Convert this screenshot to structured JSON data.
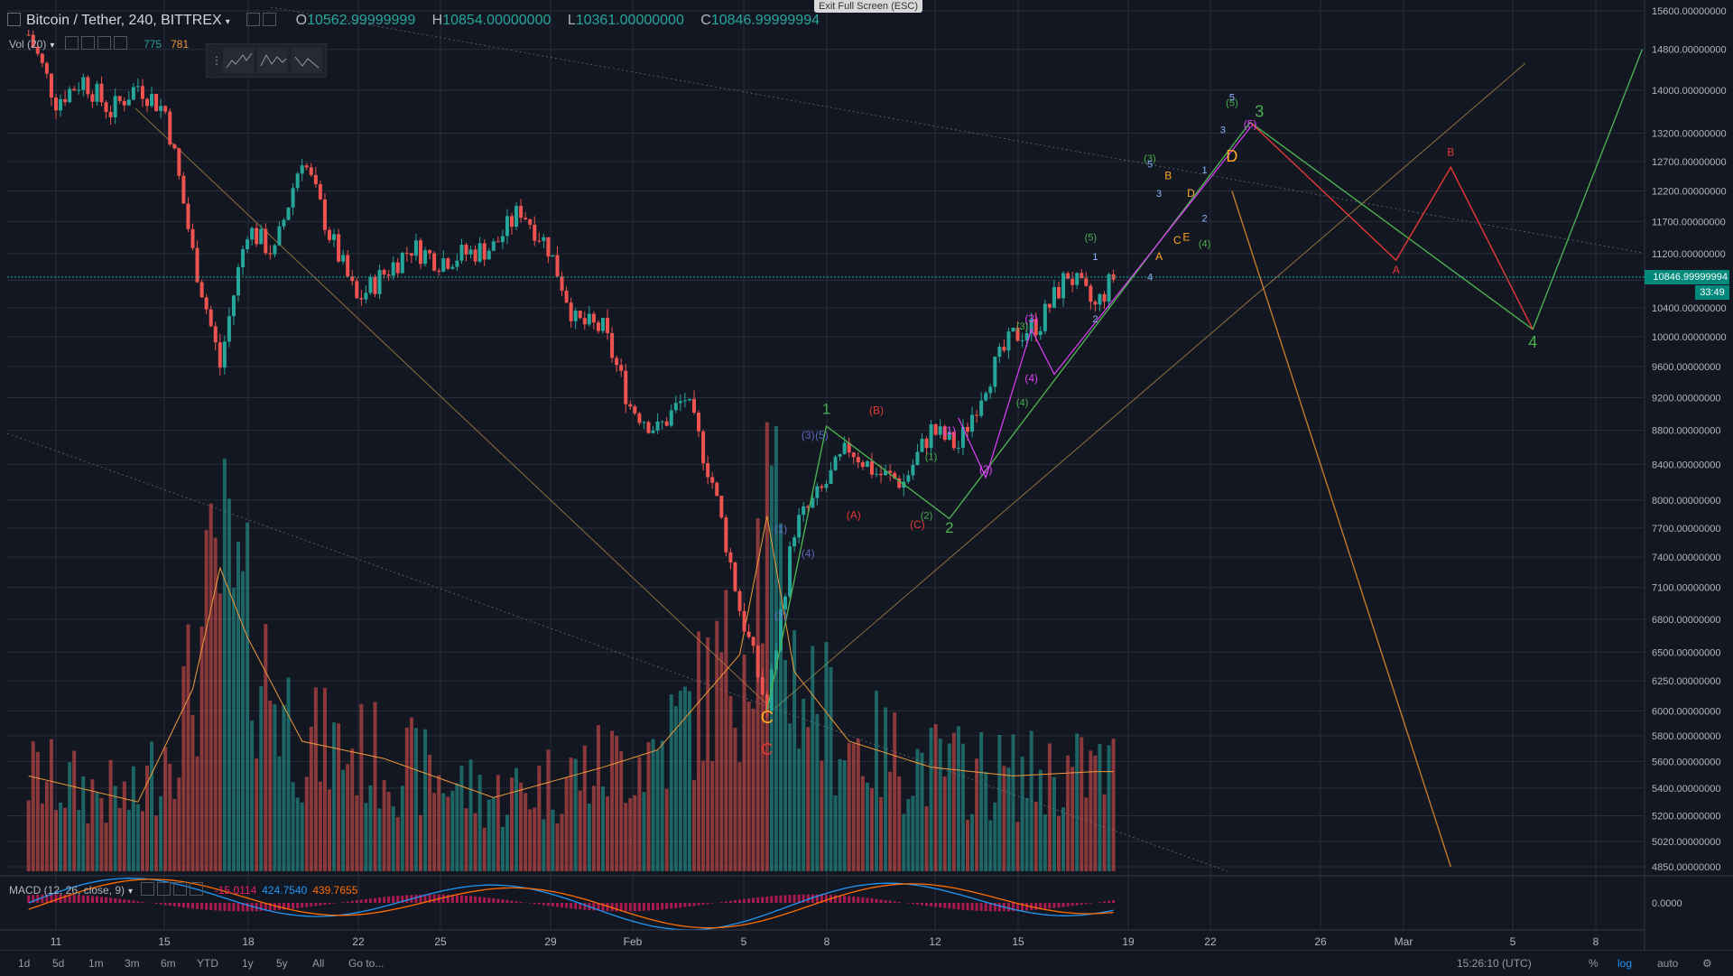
{
  "header": {
    "symbol": "Bitcoin / Tether, 240, BITTREX",
    "o_label": "O",
    "o_value": "10562.99999999",
    "h_label": "H",
    "h_value": "10854.00000000",
    "l_label": "L",
    "l_value": "10361.00000000",
    "c_label": "C",
    "c_value": "10846.99999994"
  },
  "volume": {
    "label": "Vol (20)",
    "value": "775",
    "ma_value": "781"
  },
  "toolbox": [
    "1 5",
    "A E",
    "A C"
  ],
  "macd": {
    "label": "MACD (12, 26, close, 9)",
    "hist": "-15.0114",
    "macd": "424.7540",
    "signal": "439.7655"
  },
  "exit_fullscreen": "Exit Full Screen (ESC)",
  "price_tag": "10846.99999994",
  "timer_tag": "33:49",
  "bottom": {
    "ranges": [
      "1d",
      "5d",
      "1m",
      "3m",
      "6m",
      "YTD",
      "1y",
      "5y",
      "All",
      "Go to..."
    ],
    "clock": "15:26:10 (UTC)",
    "options": [
      "%",
      "log",
      "auto"
    ],
    "active_option": "log"
  },
  "colors": {
    "bg": "#131722",
    "grid": "#2a2e39",
    "up": "#26a69a",
    "down": "#ef5350",
    "wave_green": "#4caf50",
    "wave_red": "#e53935",
    "wave_orange": "#ffa726",
    "wave_blue": "#5c6bc0",
    "wave_magenta": "#e040fb"
  },
  "chart_data": {
    "type": "candlestick",
    "scale": "log",
    "interval": "240",
    "price_axis": [
      "15600.00000000",
      "14800.00000000",
      "14000.00000000",
      "13200.00000000",
      "12700.00000000",
      "12200.00000000",
      "11700.00000000",
      "11200.00000000",
      "10800.00000000",
      "10400.00000000",
      "10000.00000000",
      "9600.00000000",
      "9200.00000000",
      "8800.00000000",
      "8400.00000000",
      "8000.00000000",
      "7700.00000000",
      "7400.00000000",
      "7100.00000000",
      "6800.00000000",
      "6500.00000000",
      "6250.00000000",
      "6000.00000000",
      "5800.00000000",
      "5600.00000000",
      "5400.00000000",
      "5200.00000000",
      "5020.00000000",
      "4850.00000000"
    ],
    "macd_axis": [
      "0.0000"
    ],
    "x_labels": [
      "11",
      "15",
      "18",
      "22",
      "25",
      "29",
      "Feb",
      "5",
      "8",
      "12",
      "15",
      "19",
      "22",
      "26",
      "Mar",
      "5",
      "8"
    ],
    "price_path": [
      [
        "2018-01-10",
        15100
      ],
      [
        "2018-01-11",
        13800
      ],
      [
        "2018-01-12",
        14200
      ],
      [
        "2018-01-13",
        13600
      ],
      [
        "2018-01-14",
        14100
      ],
      [
        "2018-01-15",
        13600
      ],
      [
        "2018-01-16",
        11200
      ],
      [
        "2018-01-17",
        9600
      ],
      [
        "2018-01-18",
        11600
      ],
      [
        "2018-01-19",
        11200
      ],
      [
        "2018-01-20",
        12800
      ],
      [
        "2018-01-21",
        11500
      ],
      [
        "2018-01-22",
        10500
      ],
      [
        "2018-01-23",
        10900
      ],
      [
        "2018-01-24",
        11300
      ],
      [
        "2018-01-25",
        11100
      ],
      [
        "2018-01-26",
        11200
      ],
      [
        "2018-01-27",
        11300
      ],
      [
        "2018-01-28",
        11900
      ],
      [
        "2018-01-29",
        11300
      ],
      [
        "2018-01-30",
        10200
      ],
      [
        "2018-01-31",
        10100
      ],
      [
        "2018-02-01",
        9100
      ],
      [
        "2018-02-02",
        8800
      ],
      [
        "2018-02-03",
        9200
      ],
      [
        "2018-02-04",
        8200
      ],
      [
        "2018-02-05",
        6900
      ],
      [
        "2018-02-06",
        6000
      ],
      [
        "2018-02-07",
        7700
      ],
      [
        "2018-02-08",
        8100
      ],
      [
        "2018-02-09",
        8600
      ],
      [
        "2018-02-10",
        8300
      ],
      [
        "2018-02-11",
        8200
      ],
      [
        "2018-02-12",
        8800
      ],
      [
        "2018-02-13",
        8600
      ],
      [
        "2018-02-14",
        9400
      ],
      [
        "2018-02-15",
        10000
      ],
      [
        "2018-02-16",
        10200
      ],
      [
        "2018-02-17",
        10900
      ],
      [
        "2018-02-18",
        10400
      ],
      [
        "2018-02-18T16:00",
        10847
      ]
    ],
    "volume_path": [
      [
        "2018-01-10",
        220
      ],
      [
        "2018-01-14",
        160
      ],
      [
        "2018-01-16",
        420
      ],
      [
        "2018-01-17",
        700
      ],
      [
        "2018-01-18",
        540
      ],
      [
        "2018-01-20",
        300
      ],
      [
        "2018-01-23",
        260
      ],
      [
        "2018-01-27",
        170
      ],
      [
        "2018-01-31",
        240
      ],
      [
        "2018-02-02",
        280
      ],
      [
        "2018-02-05",
        500
      ],
      [
        "2018-02-06",
        820
      ],
      [
        "2018-02-07",
        460
      ],
      [
        "2018-02-09",
        300
      ],
      [
        "2018-02-12",
        240
      ],
      [
        "2018-02-15",
        220
      ],
      [
        "2018-02-18",
        230
      ]
    ],
    "projection": [
      {
        "color": "#4caf50",
        "points": [
          [
            "2018-02-23T16:00",
            13400
          ],
          [
            "2018-03-06",
            10100
          ],
          [
            "2018-03-10",
            14800
          ]
        ]
      },
      {
        "color": "#e53935",
        "points": [
          [
            "2018-02-23T16:00",
            13400
          ],
          [
            "2018-03-01",
            11100
          ],
          [
            "2018-03-03",
            12600
          ],
          [
            "2018-03-06",
            10100
          ]
        ]
      },
      {
        "color": "#c47a2c",
        "points": [
          [
            "2018-02-23",
            12200
          ],
          [
            "2018-03-03",
            4850
          ]
        ]
      }
    ],
    "wave_labels": [
      {
        "text": "C",
        "t": "2018-02-06",
        "p": 5900,
        "color": "#ffa726",
        "size": 20
      },
      {
        "text": "C",
        "t": "2018-02-06",
        "p": 5650,
        "color": "#e53935",
        "size": 18
      },
      {
        "text": "1",
        "t": "2018-02-08T04:00",
        "p": 9000,
        "color": "#4caf50",
        "size": 17
      },
      {
        "text": "2",
        "t": "2018-02-12T16:00",
        "p": 7650,
        "color": "#4caf50",
        "size": 17
      },
      {
        "text": "3",
        "t": "2018-02-24",
        "p": 13500,
        "color": "#4caf50",
        "size": 18
      },
      {
        "text": "4",
        "t": "2018-03-06",
        "p": 9850,
        "color": "#4caf50",
        "size": 18
      },
      {
        "text": "D",
        "t": "2018-02-23",
        "p": 12700,
        "color": "#ffa726",
        "size": 18
      },
      {
        "text": "A",
        "t": "2018-03-01",
        "p": 10900,
        "color": "#e53935",
        "size": 12
      },
      {
        "text": "B",
        "t": "2018-03-03",
        "p": 12800,
        "color": "#e53935",
        "size": 12
      },
      {
        "text": "A",
        "t": "2018-02-20T08:00",
        "p": 11100,
        "color": "#ffa726",
        "size": 12
      },
      {
        "text": "B",
        "t": "2018-02-20T16:00",
        "p": 12400,
        "color": "#ffa726",
        "size": 12
      },
      {
        "text": "C",
        "t": "2018-02-21",
        "p": 11350,
        "color": "#ffa726",
        "size": 12
      },
      {
        "text": "D",
        "t": "2018-02-21T12:00",
        "p": 12100,
        "color": "#ffa726",
        "size": 12
      },
      {
        "text": "E",
        "t": "2018-02-21T08:00",
        "p": 11400,
        "color": "#ffa726",
        "size": 12
      },
      {
        "text": "(A)",
        "t": "2018-02-09T04:00",
        "p": 7800,
        "color": "#e53935",
        "size": 12
      },
      {
        "text": "(B)",
        "t": "2018-02-10",
        "p": 9000,
        "color": "#e53935",
        "size": 12
      },
      {
        "text": "(C)",
        "t": "2018-02-11T12:00",
        "p": 7700,
        "color": "#e53935",
        "size": 12
      },
      {
        "text": "(1)",
        "t": "2018-02-06T12:00",
        "p": 7650,
        "color": "#5c6bc0",
        "size": 12
      },
      {
        "text": "(2)",
        "t": "2018-02-06T12:00",
        "p": 6800,
        "color": "#5c6bc0",
        "size": 12
      },
      {
        "text": "(3)",
        "t": "2018-02-07T12:00",
        "p": 8700,
        "color": "#5c6bc0",
        "size": 12
      },
      {
        "text": "(4)",
        "t": "2018-02-07T12:00",
        "p": 7400,
        "color": "#5c6bc0",
        "size": 12
      },
      {
        "text": "(5)",
        "t": "2018-02-08",
        "p": 8700,
        "color": "#5c6bc0",
        "size": 12
      },
      {
        "text": "(1)",
        "t": "2018-02-12T16:00",
        "p": 8750,
        "color": "#e040fb",
        "size": 12
      },
      {
        "text": "(2)",
        "t": "2018-02-14",
        "p": 8300,
        "color": "#e040fb",
        "size": 12
      },
      {
        "text": "(3)",
        "t": "2018-02-15T16:00",
        "p": 10200,
        "color": "#e040fb",
        "size": 12
      },
      {
        "text": "(4)",
        "t": "2018-02-15T16:00",
        "p": 9400,
        "color": "#e040fb",
        "size": 12
      },
      {
        "text": "(5)",
        "t": "2018-02-23T16:00",
        "p": 13300,
        "color": "#e040fb",
        "size": 12
      },
      {
        "text": "(1)",
        "t": "2018-02-12",
        "p": 8450,
        "color": "#4caf50",
        "size": 11
      },
      {
        "text": "(2)",
        "t": "2018-02-11T20:00",
        "p": 7800,
        "color": "#4caf50",
        "size": 11
      },
      {
        "text": "(3)",
        "t": "2018-02-15T08:00",
        "p": 10100,
        "color": "#4caf50",
        "size": 11
      },
      {
        "text": "(4)",
        "t": "2018-02-15T08:00",
        "p": 9100,
        "color": "#4caf50",
        "size": 11
      },
      {
        "text": "(5)",
        "t": "2018-02-17T20:00",
        "p": 11400,
        "color": "#4caf50",
        "size": 11
      },
      {
        "text": "(3)",
        "t": "2018-02-20",
        "p": 12700,
        "color": "#4caf50",
        "size": 11
      },
      {
        "text": "(4)",
        "t": "2018-02-22",
        "p": 11300,
        "color": "#4caf50",
        "size": 11
      },
      {
        "text": "(5)",
        "t": "2018-02-23",
        "p": 13700,
        "color": "#4caf50",
        "size": 11
      },
      {
        "text": "1",
        "t": "2018-02-18",
        "p": 11100,
        "color": "#8ab4f8",
        "size": 11
      },
      {
        "text": "2",
        "t": "2018-02-18",
        "p": 10200,
        "color": "#8ab4f8",
        "size": 11
      },
      {
        "text": "3",
        "t": "2018-02-20T08:00",
        "p": 12100,
        "color": "#8ab4f8",
        "size": 11
      },
      {
        "text": "4",
        "t": "2018-02-20",
        "p": 10800,
        "color": "#8ab4f8",
        "size": 11
      },
      {
        "text": "5",
        "t": "2018-02-20",
        "p": 12600,
        "color": "#8ab4f8",
        "size": 11
      },
      {
        "text": "1",
        "t": "2018-02-22",
        "p": 12500,
        "color": "#8ab4f8",
        "size": 11
      },
      {
        "text": "2",
        "t": "2018-02-22",
        "p": 11700,
        "color": "#8ab4f8",
        "size": 11
      },
      {
        "text": "3",
        "t": "2018-02-22T16:00",
        "p": 13200,
        "color": "#8ab4f8",
        "size": 11
      },
      {
        "text": "5",
        "t": "2018-02-23",
        "p": 13800,
        "color": "#8ab4f8",
        "size": 11
      }
    ]
  }
}
